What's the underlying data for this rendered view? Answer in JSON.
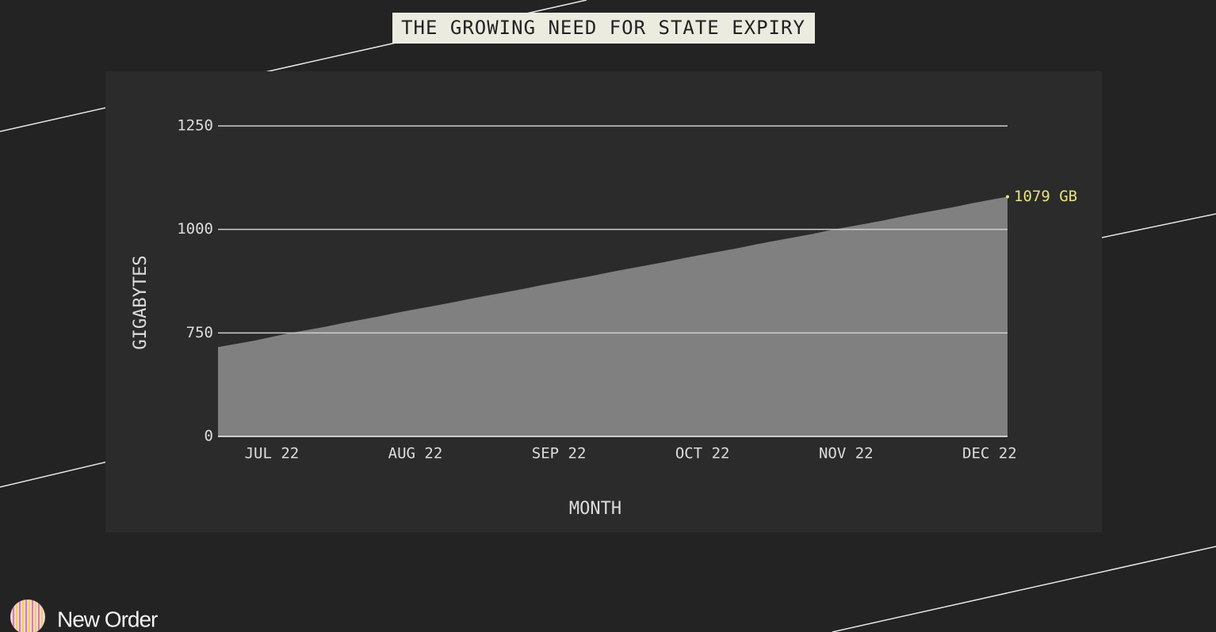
{
  "chart_data": {
    "type": "area",
    "title": "THE GROWING NEED FOR STATE EXPIRY",
    "x_label": "MONTH",
    "y_label": "GIGABYTES",
    "categories": [
      null,
      null,
      null,
      "JUL 22",
      null,
      null,
      null,
      null,
      null,
      null,
      null,
      "AUG 22",
      null,
      null,
      null,
      null,
      null,
      null,
      null,
      "SEP 22",
      null,
      null,
      null,
      null,
      null,
      null,
      null,
      "OCT 22",
      null,
      null,
      null,
      null,
      null,
      null,
      null,
      "NOV 22",
      null,
      null,
      null,
      null,
      null,
      null,
      null,
      "DEC 22",
      null
    ],
    "values": [
      647,
      670,
      693,
      721,
      749,
      757,
      765,
      774,
      782,
      790,
      799,
      807,
      815,
      823,
      832,
      840,
      848,
      856,
      865,
      873,
      881,
      889,
      898,
      906,
      914,
      922,
      931,
      939,
      947,
      955,
      964,
      972,
      980,
      988,
      997,
      1005,
      1013,
      1021,
      1030,
      1038,
      1046,
      1054,
      1063,
      1071,
      1079
    ],
    "value_labels": [
      null,
      null,
      null,
      null,
      null,
      null,
      null,
      null,
      null,
      null,
      null,
      null,
      null,
      null,
      null,
      null,
      null,
      null,
      null,
      null,
      null,
      null,
      null,
      null,
      null,
      null,
      null,
      null,
      null,
      null,
      null,
      null,
      null,
      null,
      null,
      null,
      null,
      null,
      null,
      null,
      null,
      null,
      null,
      null,
      "1079 GB"
    ],
    "color": "#808080",
    "label_color": "#e9e27c",
    "ylim": [
      0,
      1250
    ],
    "yticks": [
      0,
      750,
      1000,
      1250
    ],
    "yscale": "segmented",
    "grid": true
  },
  "footer": {
    "brand": "New Order"
  }
}
